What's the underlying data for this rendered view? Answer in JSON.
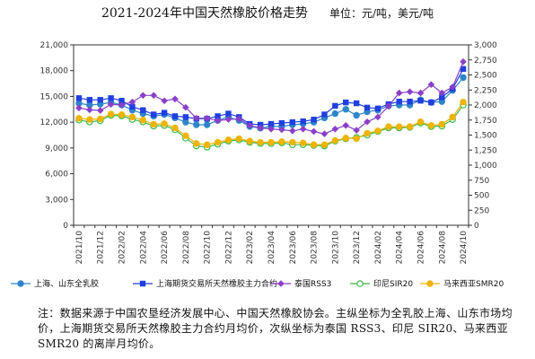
{
  "chart_data": {
    "type": "line",
    "title": "2021-2024年中国天然橡胶价格走势",
    "unit": "单位：元/吨，美元/吨",
    "x": [
      "2021/10",
      "2021/11",
      "2021/12",
      "2022/01",
      "2022/02",
      "2022/03",
      "2022/04",
      "2022/05",
      "2022/06",
      "2022/07",
      "2022/08",
      "2022/09",
      "2022/10",
      "2022/11",
      "2022/12",
      "2023/01",
      "2023/02",
      "2023/03",
      "2023/04",
      "2023/05",
      "2023/06",
      "2023/07",
      "2023/08",
      "2023/09",
      "2023/10",
      "2023/11",
      "2023/12",
      "2024/01",
      "2024/02",
      "2024/03",
      "2024/04",
      "2024/05",
      "2024/06",
      "2024/07",
      "2024/08",
      "2024/09",
      "2024/10"
    ],
    "x_tick_labels": [
      "2021/10",
      "2021/12",
      "2022/02",
      "2022/04",
      "2022/06",
      "2022/08",
      "2022/10",
      "2022/12",
      "2023/02",
      "2023/04",
      "2023/06",
      "2023/08",
      "2023/10",
      "2023/12",
      "2024/02",
      "2024/04",
      "2024/06",
      "2024/08",
      "2024/10"
    ],
    "y_left": {
      "min": 0,
      "max": 21000,
      "ticks": [
        "0",
        "3,000",
        "6,000",
        "9,000",
        "12,000",
        "15,000",
        "18,000",
        "21,000"
      ]
    },
    "y_right": {
      "min": 0,
      "max": 3000,
      "ticks": [
        "0",
        "250",
        "500",
        "750",
        "1,000",
        "1,250",
        "1,500",
        "1,750",
        "2,000",
        "2,250",
        "2,500",
        "2,750",
        "3,000"
      ]
    },
    "series": [
      {
        "name": "上海、山东全乳胶",
        "axis": "left",
        "color": "#2e86c8",
        "marker": "circle",
        "values": [
          14200,
          14000,
          14100,
          14300,
          14000,
          13400,
          13000,
          12700,
          12900,
          12500,
          12000,
          11700,
          11700,
          12200,
          12600,
          12200,
          11500,
          11300,
          11500,
          11500,
          11700,
          11800,
          12000,
          12500,
          13000,
          13500,
          12800,
          13200,
          13400,
          13900,
          14000,
          14000,
          14600,
          14300,
          14400,
          15700,
          17200
        ]
      },
      {
        "name": "上海期货交易所天然橡胶主力合约",
        "axis": "left",
        "color": "#1f3fe0",
        "marker": "square",
        "values": [
          14800,
          14600,
          14600,
          14800,
          14500,
          13800,
          13400,
          12900,
          13100,
          12700,
          12600,
          12400,
          12400,
          12700,
          13000,
          12600,
          11800,
          11700,
          11800,
          11900,
          12000,
          12100,
          12300,
          12900,
          13900,
          14300,
          14200,
          13700,
          13600,
          14100,
          14400,
          14400,
          14500,
          14300,
          14900,
          15900,
          18200
        ]
      },
      {
        "name": "泰国RSS3",
        "axis": "right",
        "color": "#8b3fc8",
        "marker": "diamond",
        "values": [
          1950,
          1920,
          1910,
          2010,
          2000,
          2050,
          2160,
          2160,
          2070,
          2100,
          1960,
          1780,
          1780,
          1740,
          1760,
          1770,
          1660,
          1620,
          1600,
          1590,
          1570,
          1600,
          1560,
          1520,
          1600,
          1660,
          1580,
          1720,
          1800,
          1980,
          2200,
          2220,
          2200,
          2340,
          2200,
          2300,
          2720
        ]
      },
      {
        "name": "印尼SIR20",
        "axis": "right",
        "color": "#3ab84a",
        "marker": "open-circle",
        "values": [
          1750,
          1720,
          1740,
          1830,
          1820,
          1760,
          1720,
          1650,
          1660,
          1590,
          1450,
          1320,
          1300,
          1350,
          1400,
          1420,
          1380,
          1360,
          1360,
          1370,
          1340,
          1340,
          1330,
          1320,
          1400,
          1440,
          1460,
          1500,
          1560,
          1620,
          1620,
          1630,
          1700,
          1640,
          1650,
          1760,
          2000
        ]
      },
      {
        "name": "马来西亚SMR20",
        "axis": "right",
        "color": "#f0b400",
        "marker": "filled-circle",
        "values": [
          1780,
          1760,
          1770,
          1850,
          1840,
          1800,
          1750,
          1680,
          1690,
          1620,
          1490,
          1360,
          1340,
          1380,
          1420,
          1440,
          1400,
          1380,
          1380,
          1390,
          1380,
          1370,
          1340,
          1340,
          1410,
          1450,
          1440,
          1530,
          1570,
          1640,
          1640,
          1640,
          1720,
          1660,
          1680,
          1800,
          2050
        ]
      }
    ],
    "legend_position": "bottom",
    "grid": false
  },
  "note": "注：数据来源于中国农垦经济发展中心、中国天然橡胶协会。主纵坐标为全乳胶上海、山东市场均价，上海期货交易所天然橡胶主力合约月均价，次纵坐标为泰国 RSS3、印尼 SIR20、马来西亚 SMR20 的离岸月均价。"
}
